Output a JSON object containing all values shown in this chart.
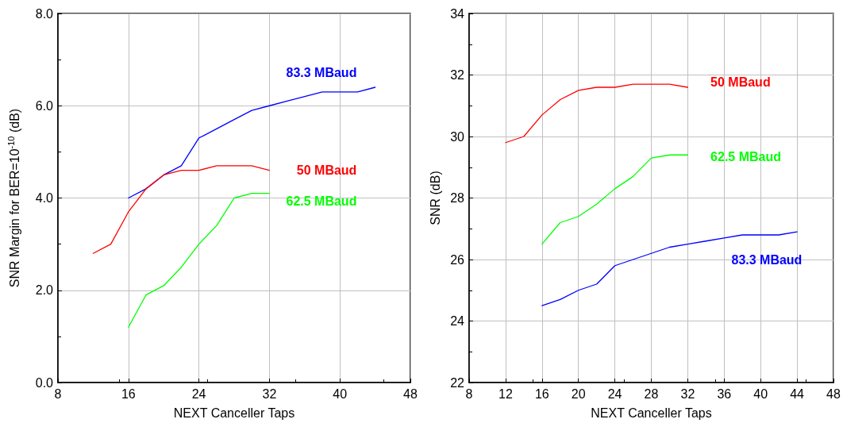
{
  "chart_data": [
    {
      "type": "line",
      "xlabel": "NEXT Canceller Taps",
      "ylabel": "SNR Margin for BER=10$^{-10}$ (dB)",
      "xlim": [
        8,
        48
      ],
      "xticks": [
        8,
        16,
        24,
        32,
        40,
        48
      ],
      "ylim": [
        0,
        8
      ],
      "yticks": [
        {
          "value": 0,
          "label": "0.0"
        },
        {
          "value": 2,
          "label": "2.0"
        },
        {
          "value": 4,
          "label": "4.0"
        },
        {
          "value": 6,
          "label": "6.0"
        },
        {
          "value": 8,
          "label": "8.0"
        }
      ],
      "grid": true,
      "legend": false,
      "marker": "none",
      "line_style": "solid",
      "series": [
        {
          "name": "83.3 MBaud",
          "color": "#0000ff",
          "x": [
            16,
            18,
            20,
            22,
            24,
            26,
            28,
            30,
            32,
            34,
            36,
            38,
            40,
            42,
            44
          ],
          "values": [
            4.0,
            4.2,
            4.5,
            4.7,
            5.3,
            5.5,
            5.7,
            5.9,
            6.0,
            6.1,
            6.2,
            6.3,
            6.3,
            6.3,
            6.4
          ]
        },
        {
          "name": "50 MBaud",
          "color": "#ff0000",
          "x": [
            12,
            14,
            16,
            18,
            20,
            22,
            24,
            26,
            28,
            30,
            32
          ],
          "values": [
            2.8,
            3.0,
            3.7,
            4.2,
            4.5,
            4.6,
            4.6,
            4.7,
            4.7,
            4.7,
            4.6
          ]
        },
        {
          "name": "62.5 MBaud",
          "color": "#00ff00",
          "x": [
            16,
            18,
            20,
            22,
            24,
            26,
            28,
            30,
            32
          ],
          "values": [
            1.2,
            1.9,
            2.1,
            2.5,
            3.0,
            3.4,
            4.0,
            4.1,
            4.1
          ]
        }
      ]
    },
    {
      "type": "line",
      "xlabel": "NEXT Canceller Taps",
      "ylabel": "SNR (dB)",
      "xlim": [
        8,
        48
      ],
      "xticks": [
        8,
        12,
        16,
        20,
        24,
        28,
        32,
        36,
        40,
        44,
        48
      ],
      "ylim": [
        22,
        34
      ],
      "yticks": [
        22,
        24,
        26,
        28,
        30,
        32,
        34
      ],
      "grid": true,
      "legend": false,
      "marker": "none",
      "line_style": "solid",
      "series": [
        {
          "name": "50 MBaud",
          "color": "#ff0000",
          "x": [
            12,
            14,
            16,
            18,
            20,
            22,
            24,
            26,
            28,
            30,
            32
          ],
          "values": [
            29.8,
            30.0,
            30.7,
            31.2,
            31.5,
            31.6,
            31.6,
            31.7,
            31.7,
            31.7,
            31.6
          ]
        },
        {
          "name": "62.5 MBaud",
          "color": "#00ff00",
          "x": [
            16,
            18,
            20,
            22,
            24,
            26,
            28,
            30,
            32
          ],
          "values": [
            26.5,
            27.2,
            27.4,
            27.8,
            28.3,
            28.7,
            29.3,
            29.4,
            29.4
          ]
        },
        {
          "name": "83.3 MBaud",
          "color": "#0000ff",
          "x": [
            16,
            18,
            20,
            22,
            24,
            26,
            28,
            30,
            32,
            34,
            36,
            38,
            40,
            42,
            44
          ],
          "values": [
            24.5,
            24.7,
            25.0,
            25.2,
            25.8,
            26.0,
            26.2,
            26.4,
            26.5,
            26.6,
            26.7,
            26.8,
            26.8,
            26.8,
            26.9
          ]
        }
      ]
    }
  ]
}
